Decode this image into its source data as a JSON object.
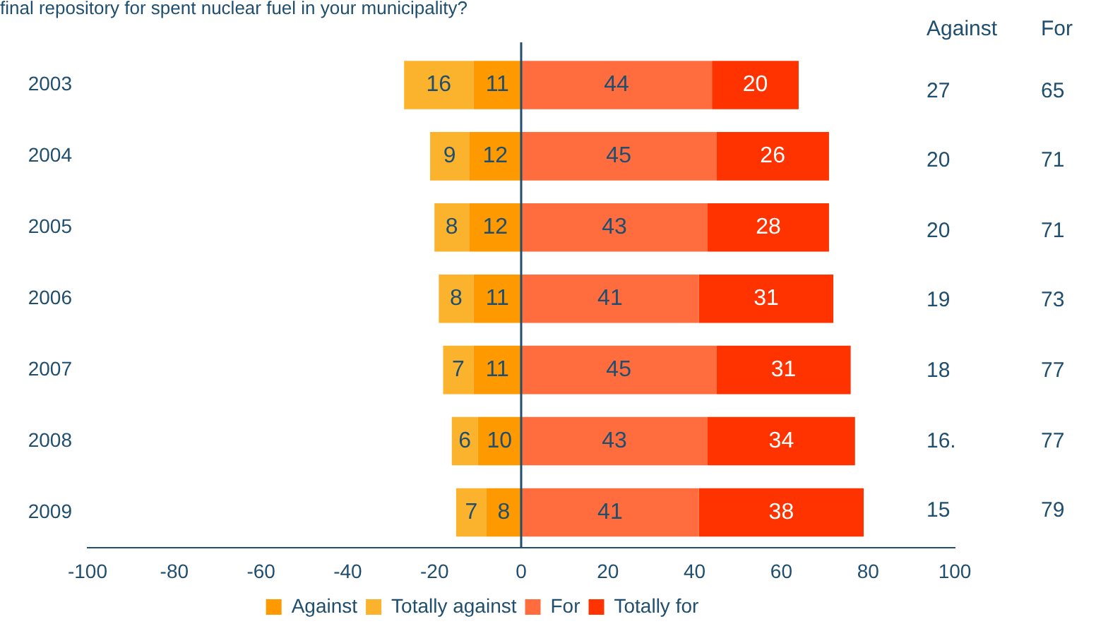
{
  "chart_data": {
    "type": "bar",
    "orientation": "horizontal",
    "title": "final repository for spent nuclear fuel in your municipality?",
    "categories": [
      "2003",
      "2004",
      "2005",
      "2006",
      "2007",
      "2008",
      "2009"
    ],
    "series": [
      {
        "name": "Against",
        "color": "#ff9900",
        "values": [
          11,
          12,
          12,
          11,
          11,
          10,
          8
        ],
        "base": [
          -11,
          -12,
          -12,
          -11,
          -11,
          -10,
          -8
        ]
      },
      {
        "name": "Totally against",
        "color": "#fbb32e",
        "values": [
          16,
          9,
          8,
          8,
          7,
          6,
          7
        ],
        "base": [
          -27,
          -21,
          -20,
          -19,
          -18,
          -16,
          -15
        ]
      },
      {
        "name": "For",
        "color": "#ff6d3f",
        "values": [
          44,
          45,
          43,
          41,
          45,
          43,
          41
        ],
        "base": [
          0,
          0,
          0,
          0,
          0,
          0,
          0
        ]
      },
      {
        "name": "Totally for",
        "color": "#ff3300",
        "values": [
          20,
          26,
          28,
          31,
          31,
          34,
          38
        ],
        "base": [
          44,
          45,
          43,
          41,
          45,
          43,
          41
        ]
      }
    ],
    "data_labels": true,
    "ref_lines": [
      {
        "axis": "x",
        "value": 0,
        "color": "#1f4e6e"
      }
    ],
    "xlim": [
      -100,
      100
    ],
    "xticks": [
      -100,
      -80,
      -60,
      -40,
      -20,
      0,
      20,
      40,
      60,
      80,
      100
    ],
    "grid": false,
    "legend": "bottom",
    "annotations": [
      "Against",
      "For",
      "27",
      "65",
      "20",
      "71",
      "20",
      "71",
      "19",
      "73",
      "18",
      "77",
      "16.",
      "77",
      "15",
      "79"
    ]
  }
}
